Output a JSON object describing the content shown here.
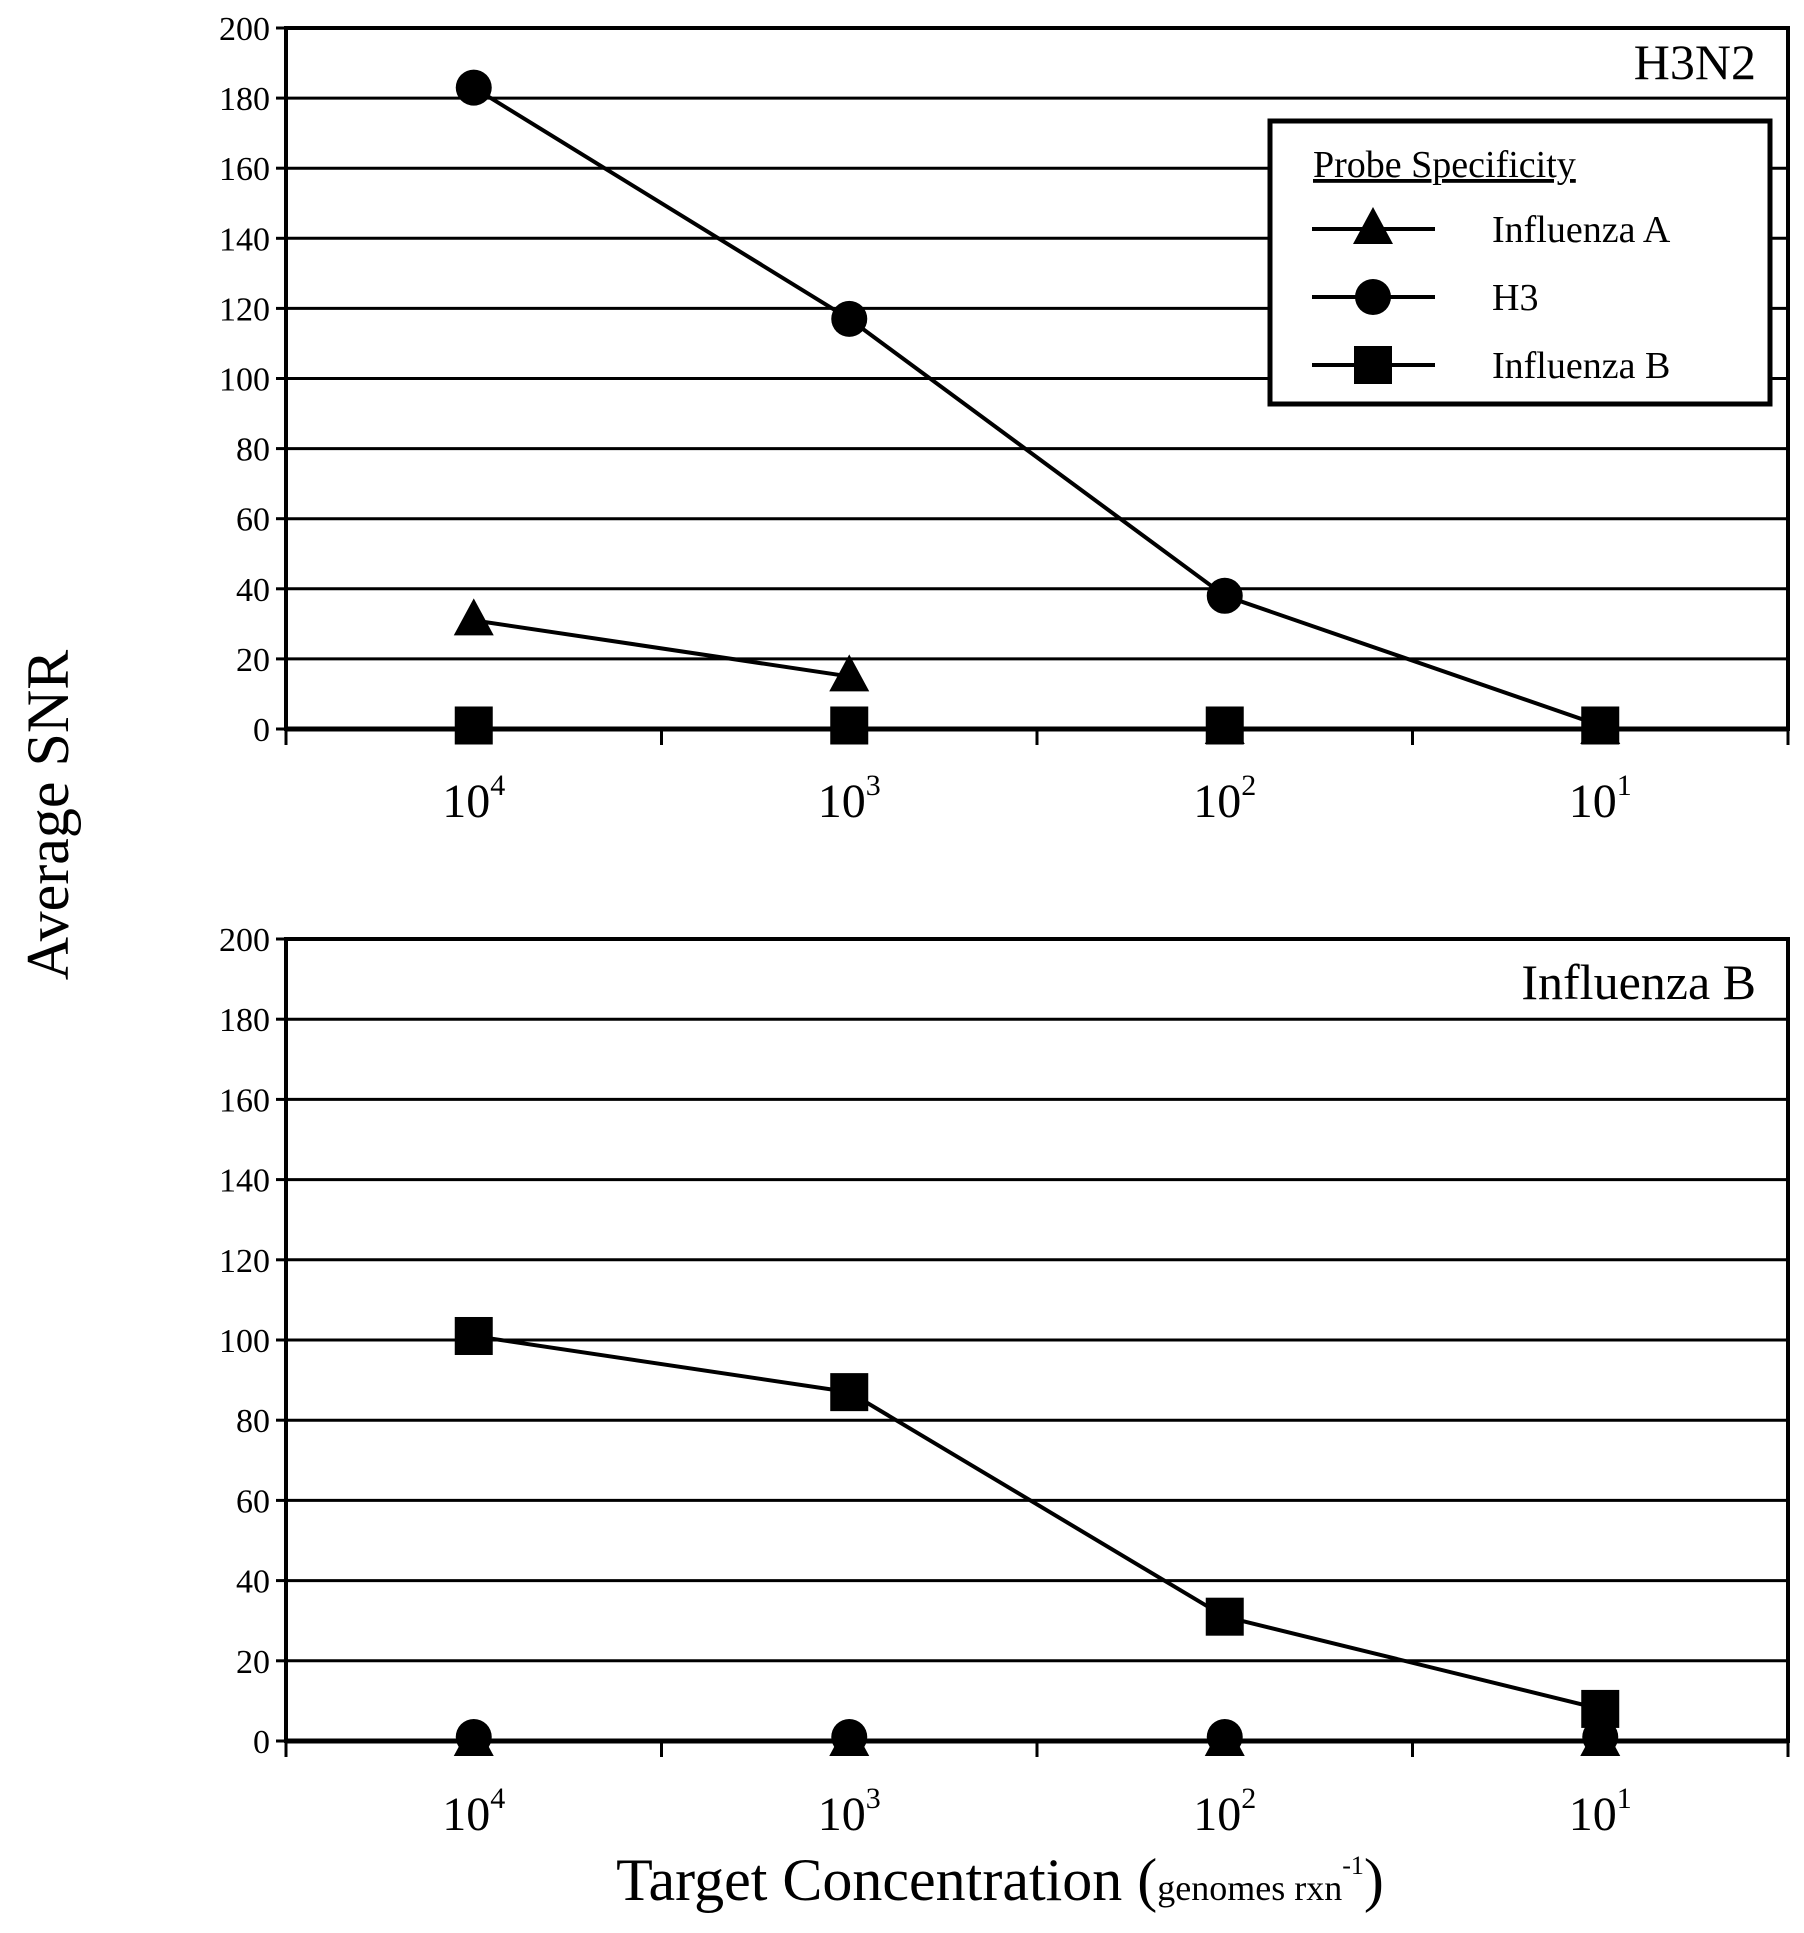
{
  "figure": {
    "ylabel": "Average SNR",
    "xlabel_main": "Target Concentration (",
    "xlabel_unit": "genomes rxn",
    "xlabel_exp": "-1",
    "xlabel_close": ")"
  },
  "legend": {
    "title": "Probe Specificity",
    "items": [
      {
        "label": "Influenza A",
        "marker": "triangle"
      },
      {
        "label": "H3",
        "marker": "circle"
      },
      {
        "label": "Influenza B",
        "marker": "square"
      }
    ]
  },
  "chart_data": [
    {
      "type": "line",
      "title": "H3N2",
      "xlabel": "Target Concentration (genomes rxn-1)",
      "ylabel": "Average SNR",
      "ylim": [
        0,
        200
      ],
      "ytick_step": 20,
      "grid": true,
      "legend_position": "top-right",
      "categories": [
        {
          "base": "10",
          "exp": "4"
        },
        {
          "base": "10",
          "exp": "3"
        },
        {
          "base": "10",
          "exp": "2"
        },
        {
          "base": "10",
          "exp": "1"
        }
      ],
      "series": [
        {
          "name": "Influenza A",
          "marker": "triangle",
          "values": [
            31,
            15,
            0,
            0
          ],
          "draw_line": [
            true,
            true,
            false,
            false
          ]
        },
        {
          "name": "H3",
          "marker": "circle",
          "values": [
            183,
            117,
            38,
            1
          ],
          "draw_line": [
            true,
            true,
            true,
            true
          ]
        },
        {
          "name": "Influenza B",
          "marker": "square",
          "values": [
            1,
            1,
            1,
            1
          ],
          "draw_line": [
            false,
            false,
            false,
            false
          ]
        }
      ]
    },
    {
      "type": "line",
      "title": "Influenza B",
      "xlabel": "Target Concentration (genomes rxn-1)",
      "ylabel": "Average SNR",
      "ylim": [
        0,
        200
      ],
      "ytick_step": 20,
      "grid": true,
      "categories": [
        {
          "base": "10",
          "exp": "4"
        },
        {
          "base": "10",
          "exp": "3"
        },
        {
          "base": "10",
          "exp": "2"
        },
        {
          "base": "10",
          "exp": "1"
        }
      ],
      "series": [
        {
          "name": "Influenza A",
          "marker": "triangle",
          "values": [
            0,
            0,
            0,
            0
          ],
          "draw_line": [
            false,
            false,
            false,
            false
          ]
        },
        {
          "name": "H3",
          "marker": "circle",
          "values": [
            1,
            1,
            1,
            1
          ],
          "draw_line": [
            false,
            false,
            false,
            false
          ]
        },
        {
          "name": "Influenza B",
          "marker": "square",
          "values": [
            101,
            87,
            31,
            8
          ],
          "draw_line": [
            true,
            true,
            true,
            true
          ]
        }
      ]
    }
  ]
}
